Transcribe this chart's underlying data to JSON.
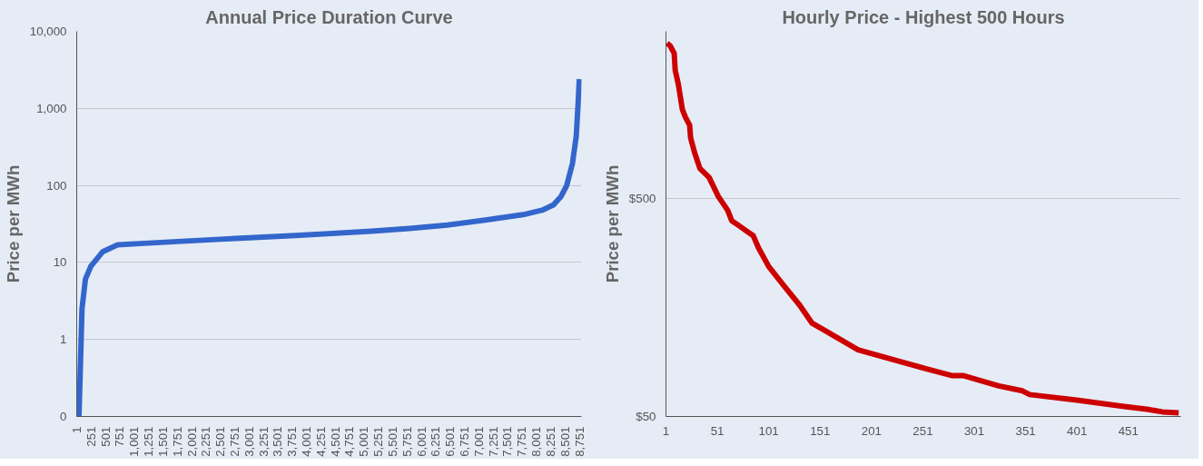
{
  "chart_data": [
    {
      "type": "line",
      "title": "Annual Price Duration Curve",
      "ylabel": "Price per MWh",
      "log": "y",
      "grid": "y",
      "marker": "none",
      "line_style": "solid",
      "x": [
        40,
        93,
        153,
        250,
        450,
        712,
        1175,
        2495,
        3814,
        5134,
        5794,
        6454,
        7114,
        7773,
        8103,
        8302,
        8434,
        8533,
        8632,
        8698,
        8731,
        8751
      ],
      "series": [
        {
          "color": "#3366cc",
          "values": [
            0.1,
            2.5,
            6.1,
            9,
            13.7,
            16.9,
            17.7,
            20,
            22.3,
            25.5,
            27.6,
            30.6,
            35.5,
            41.7,
            47.6,
            56,
            72,
            100,
            193,
            436,
            1170,
            2400
          ]
        }
      ],
      "xlim": [
        1,
        8790
      ],
      "xticks": [
        1,
        251,
        501,
        751,
        {
          "value": 1001,
          "label": "1,001"
        },
        {
          "value": 1251,
          "label": "1,251"
        },
        {
          "value": 1501,
          "label": "1,501"
        },
        {
          "value": 1751,
          "label": "1,751"
        },
        {
          "value": 2001,
          "label": "2,001"
        },
        {
          "value": 2251,
          "label": "2,251"
        },
        {
          "value": 2501,
          "label": "2,501"
        },
        {
          "value": 2751,
          "label": "2,751"
        },
        {
          "value": 3001,
          "label": "3,001"
        },
        {
          "value": 3251,
          "label": "3,251"
        },
        {
          "value": 3501,
          "label": "3,501"
        },
        {
          "value": 3751,
          "label": "3,751"
        },
        {
          "value": 4001,
          "label": "4,001"
        },
        {
          "value": 4251,
          "label": "4,251"
        },
        {
          "value": 4501,
          "label": "4,501"
        },
        {
          "value": 4751,
          "label": "4,751"
        },
        {
          "value": 5001,
          "label": "5,001"
        },
        {
          "value": 5251,
          "label": "5,251"
        },
        {
          "value": 5501,
          "label": "5,501"
        },
        {
          "value": 5751,
          "label": "5,751"
        },
        {
          "value": 6001,
          "label": "6,001"
        },
        {
          "value": 6251,
          "label": "6,251"
        },
        {
          "value": 6501,
          "label": "6,501"
        },
        {
          "value": 6751,
          "label": "6,751"
        },
        {
          "value": 7001,
          "label": "7,001"
        },
        {
          "value": 7251,
          "label": "7,251"
        },
        {
          "value": 7501,
          "label": "7,501"
        },
        {
          "value": 7751,
          "label": "7,751"
        },
        {
          "value": 8001,
          "label": "8,001"
        },
        {
          "value": 8251,
          "label": "8,251"
        },
        {
          "value": 8501,
          "label": "8,501"
        },
        {
          "value": 8751,
          "label": "8,751"
        }
      ],
      "ylim": [
        0.1,
        10000
      ],
      "yticks": [
        {
          "value": 0.1,
          "label": "0"
        },
        1,
        10,
        100,
        {
          "value": 1000,
          "label": "1,000"
        },
        {
          "value": 10000,
          "label": "10,000"
        }
      ]
    },
    {
      "type": "line",
      "title": "Hourly Price - Highest 500 Hours",
      "ylabel": "Price per MWh",
      "log": "y",
      "grid": "y",
      "marker": "none",
      "line_style": "solid",
      "x": [
        2,
        5,
        9,
        10,
        13,
        17,
        20,
        24,
        25,
        29,
        34,
        43,
        52,
        61,
        65,
        72,
        86,
        91,
        101,
        116,
        131,
        143,
        158,
        188,
        222,
        253,
        279,
        290,
        325,
        348,
        355,
        401,
        447,
        469,
        484,
        500
      ],
      "series": [
        {
          "color": "#cc0000",
          "values": [
            2560,
            2494,
            2300,
            1923,
            1664,
            1271,
            1172,
            1081,
            944,
            804,
            684,
            621,
            508,
            440,
            394,
            374,
            336,
            296,
            243,
            198,
            162,
            134,
            122,
            101,
            91,
            83,
            77,
            77,
            69,
            65.5,
            63,
            59.4,
            55.6,
            54,
            52.5,
            52
          ]
        }
      ],
      "xlim": [
        1,
        502
      ],
      "xticks": [
        1,
        51,
        101,
        151,
        201,
        251,
        301,
        351,
        401,
        451
      ],
      "ylim": [
        50,
        2900
      ],
      "yticks": [
        {
          "value": 50,
          "label": "$50"
        },
        {
          "value": 500,
          "label": "$500"
        }
      ]
    }
  ]
}
